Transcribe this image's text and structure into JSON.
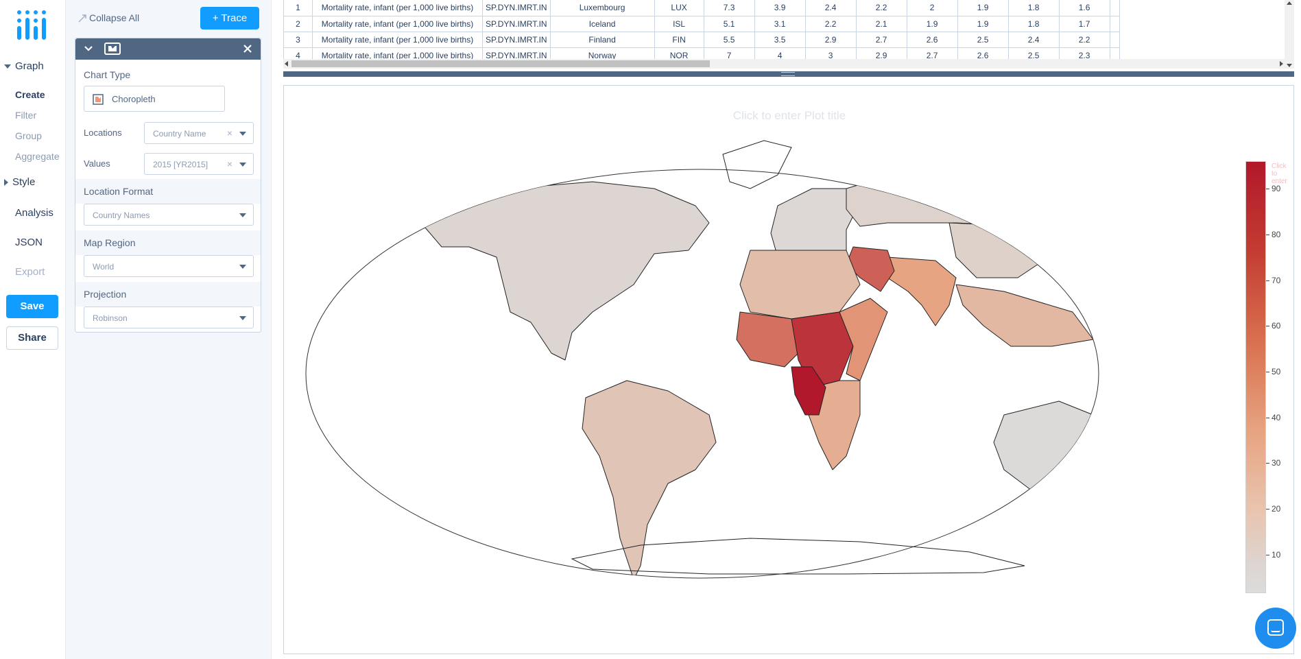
{
  "nav": {
    "graph": "Graph",
    "create": "Create",
    "filter": "Filter",
    "group": "Group",
    "aggregate": "Aggregate",
    "style": "Style",
    "analysis": "Analysis",
    "json": "JSON",
    "export": "Export",
    "save": "Save",
    "share": "Share"
  },
  "panel": {
    "collapse_all": "Collapse All",
    "add_trace": "+ Trace",
    "chart_type_label": "Chart Type",
    "chart_type_value": "Choropleth",
    "locations_label": "Locations",
    "locations_value": "Country Name",
    "values_label": "Values",
    "values_value": "2015 [YR2015]",
    "location_format_label": "Location Format",
    "location_format_value": "Country Names",
    "map_region_label": "Map Region",
    "map_region_value": "World",
    "projection_label": "Projection",
    "projection_value": "Robinson"
  },
  "grid": {
    "rows": [
      {
        "n": "1",
        "series": "Mortality rate, infant (per 1,000 live births)",
        "code": "SP.DYN.IMRT.IN",
        "country": "Luxembourg",
        "iso": "LUX",
        "v": [
          "7.3",
          "3.9",
          "2.4",
          "2.2",
          "2",
          "1.9",
          "1.8",
          "1.6"
        ]
      },
      {
        "n": "2",
        "series": "Mortality rate, infant (per 1,000 live births)",
        "code": "SP.DYN.IMRT.IN",
        "country": "Iceland",
        "iso": "ISL",
        "v": [
          "5.1",
          "3.1",
          "2.2",
          "2.1",
          "1.9",
          "1.9",
          "1.8",
          "1.7"
        ]
      },
      {
        "n": "3",
        "series": "Mortality rate, infant (per 1,000 live births)",
        "code": "SP.DYN.IMRT.IN",
        "country": "Finland",
        "iso": "FIN",
        "v": [
          "5.5",
          "3.5",
          "2.9",
          "2.7",
          "2.6",
          "2.5",
          "2.4",
          "2.2"
        ]
      },
      {
        "n": "4",
        "series": "Mortality rate, infant (per 1,000 live births)",
        "code": "SP.DYN.IMRT.IN",
        "country": "Norway",
        "iso": "NOR",
        "v": [
          "7",
          "4",
          "3",
          "2.9",
          "2.7",
          "2.6",
          "2.5",
          "2.3"
        ]
      }
    ]
  },
  "plot": {
    "title_placeholder": "Click to enter Plot title",
    "colorbar_title": "Click to enter",
    "colorscale": {
      "low": "#dcdcdc",
      "mid": "#e7a27f",
      "high": "#b2182b"
    }
  },
  "chart_data": {
    "type": "choropleth",
    "title": "",
    "projection": "Robinson",
    "scope": "World",
    "colorbar": {
      "ticks": [
        10,
        20,
        30,
        40,
        50,
        60,
        70,
        80,
        90
      ],
      "range": [
        1.6,
        96
      ]
    },
    "regions": [
      {
        "name": "North America",
        "level": 6
      },
      {
        "name": "South America",
        "level": 17
      },
      {
        "name": "Europe",
        "level": 4
      },
      {
        "name": "Russia",
        "level": 8
      },
      {
        "name": "China",
        "level": 9
      },
      {
        "name": "South Asia",
        "level": 38
      },
      {
        "name": "Pakistan",
        "level": 66
      },
      {
        "name": "North Africa",
        "level": 22
      },
      {
        "name": "West Africa",
        "level": 60
      },
      {
        "name": "Central Africa",
        "level": 85
      },
      {
        "name": "East Africa",
        "level": 45
      },
      {
        "name": "Southern Africa",
        "level": 32
      },
      {
        "name": "Angola",
        "level": 96
      },
      {
        "name": "Southeast Asia",
        "level": 25
      },
      {
        "name": "Australia",
        "level": 3
      }
    ]
  }
}
